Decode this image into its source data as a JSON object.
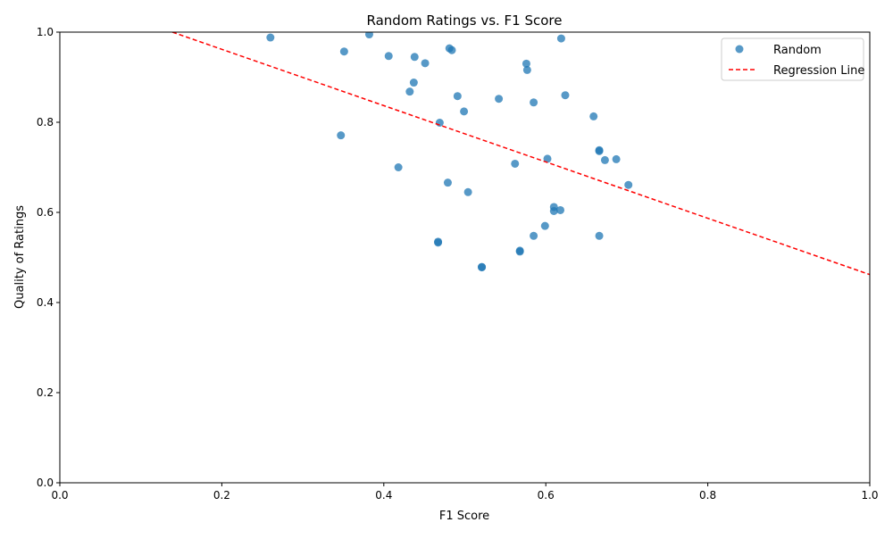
{
  "chart_data": {
    "type": "scatter",
    "title": "Random Ratings vs. F1 Score",
    "xlabel": "F1 Score",
    "ylabel": "Quality of Ratings",
    "xlim": [
      0,
      1
    ],
    "ylim": [
      0,
      1
    ],
    "xticks": [
      "0.0",
      "0.2",
      "0.4",
      "0.6",
      "0.8",
      "1.0"
    ],
    "yticks": [
      "0.0",
      "0.2",
      "0.4",
      "0.6",
      "0.8",
      "1.0"
    ],
    "grid": false,
    "legend_position": "top-right",
    "series": [
      {
        "name": "Random",
        "color": "#1f77b4",
        "points": [
          [
            0.26,
            0.988
          ],
          [
            0.382,
            0.995
          ],
          [
            0.351,
            0.957
          ],
          [
            0.406,
            0.947
          ],
          [
            0.438,
            0.945
          ],
          [
            0.451,
            0.931
          ],
          [
            0.481,
            0.964
          ],
          [
            0.484,
            0.96
          ],
          [
            0.437,
            0.888
          ],
          [
            0.432,
            0.868
          ],
          [
            0.491,
            0.858
          ],
          [
            0.542,
            0.852
          ],
          [
            0.499,
            0.824
          ],
          [
            0.469,
            0.799
          ],
          [
            0.347,
            0.771
          ],
          [
            0.576,
            0.93
          ],
          [
            0.577,
            0.916
          ],
          [
            0.619,
            0.986
          ],
          [
            0.585,
            0.844
          ],
          [
            0.624,
            0.86
          ],
          [
            0.659,
            0.813
          ],
          [
            0.666,
            0.738
          ],
          [
            0.666,
            0.736
          ],
          [
            0.673,
            0.716
          ],
          [
            0.687,
            0.718
          ],
          [
            0.602,
            0.719
          ],
          [
            0.562,
            0.708
          ],
          [
            0.418,
            0.7
          ],
          [
            0.479,
            0.666
          ],
          [
            0.504,
            0.645
          ],
          [
            0.702,
            0.661
          ],
          [
            0.61,
            0.612
          ],
          [
            0.61,
            0.603
          ],
          [
            0.618,
            0.605
          ],
          [
            0.599,
            0.57
          ],
          [
            0.585,
            0.548
          ],
          [
            0.666,
            0.548
          ],
          [
            0.467,
            0.535
          ],
          [
            0.467,
            0.533
          ],
          [
            0.568,
            0.515
          ],
          [
            0.568,
            0.513
          ],
          [
            0.521,
            0.479
          ],
          [
            0.521,
            0.478
          ]
        ]
      },
      {
        "name": "Regression Line",
        "color": "#ff0000",
        "style": "dashed",
        "line": [
          [
            0.139,
            1.0
          ],
          [
            1.0,
            0.462
          ]
        ]
      }
    ]
  }
}
